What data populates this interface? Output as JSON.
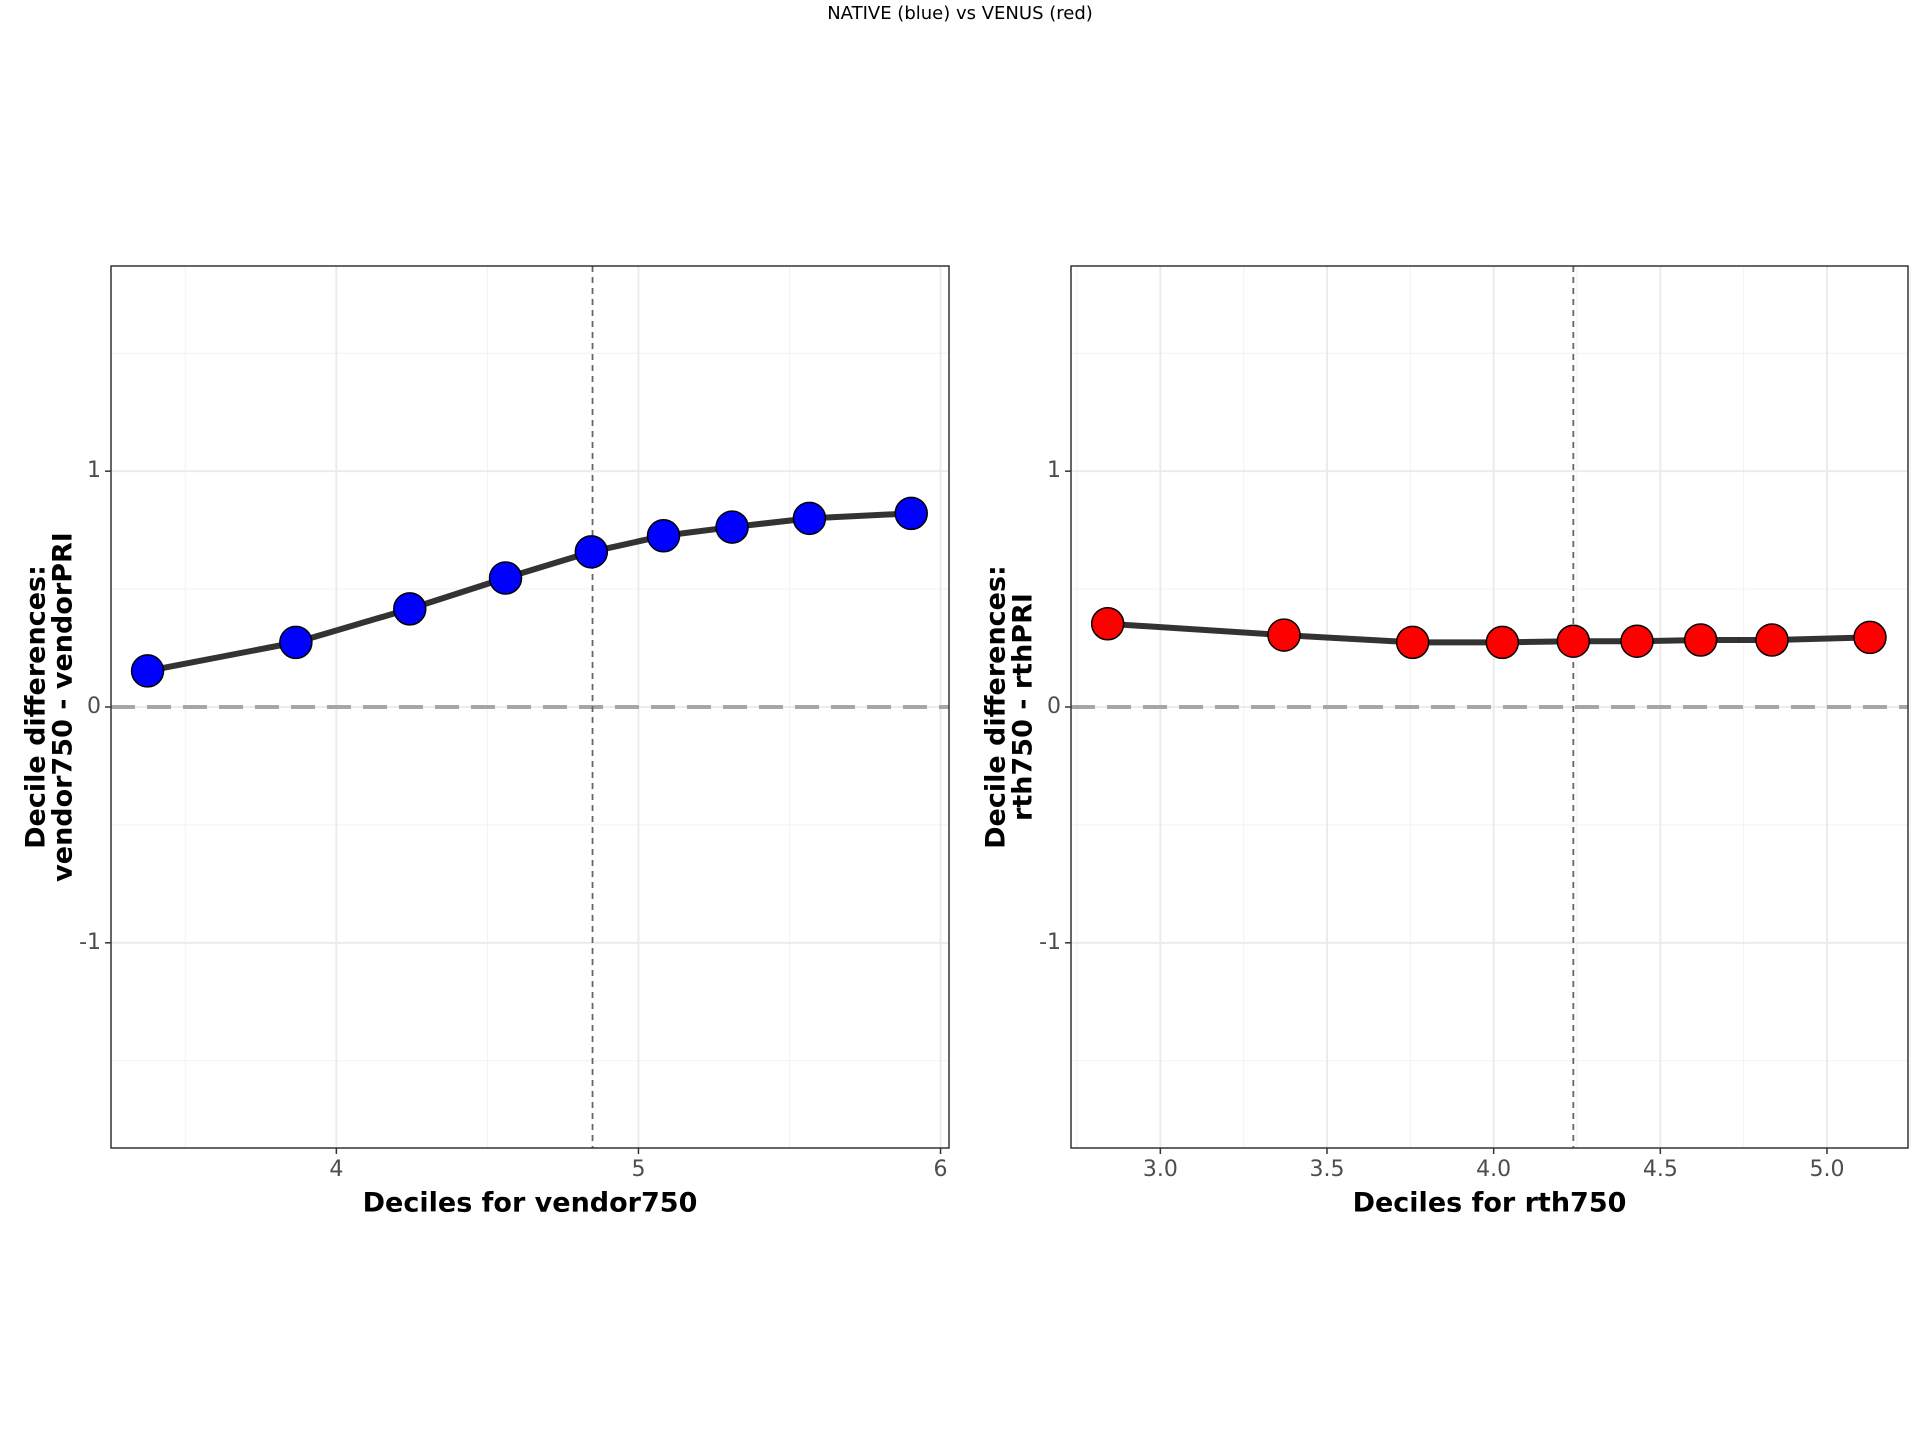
{
  "title": "NATIVE (blue) vs VENUS (red)",
  "chart_data": [
    {
      "type": "line",
      "x_label": "Deciles for vendor750",
      "y_label": [
        "Decile differences:",
        "vendor750 - vendorPRI"
      ],
      "x": [
        3.375,
        3.866,
        4.243,
        4.56,
        4.844,
        5.083,
        5.31,
        5.566,
        5.903
      ],
      "values": [
        0.153,
        0.274,
        0.416,
        0.547,
        0.658,
        0.726,
        0.763,
        0.8,
        0.821
      ],
      "color": "#0000ff",
      "line_color": "#333333",
      "xlim": [
        3.254,
        6.028
      ],
      "ylim": [
        -1.87,
        1.87
      ],
      "xticks": [
        4,
        5,
        6
      ],
      "yticks": [
        -1,
        0,
        1
      ],
      "minor_xticks": [
        3.5,
        4.5,
        5.5
      ],
      "minor_yticks": [
        -1.5,
        -0.5,
        0.5,
        1.5
      ],
      "vline": 4.848,
      "hline": 0,
      "grid": true
    },
    {
      "type": "line",
      "x_label": "Deciles for rth750",
      "y_label": [
        "Decile differences:",
        "rth750 - rthPRI"
      ],
      "x": [
        2.842,
        3.371,
        3.757,
        4.026,
        4.239,
        4.43,
        4.621,
        4.835,
        5.129
      ],
      "values": [
        0.353,
        0.305,
        0.274,
        0.274,
        0.279,
        0.279,
        0.284,
        0.284,
        0.295
      ],
      "color": "#ff0000",
      "line_color": "#333333",
      "xlim": [
        2.732,
        5.243
      ],
      "ylim": [
        -1.87,
        1.87
      ],
      "xticks": [
        {
          "value": 3,
          "label": "3.0"
        },
        3.5,
        {
          "value": 4,
          "label": "4.0"
        },
        4.5,
        {
          "value": 5,
          "label": "5.0"
        }
      ],
      "yticks": [
        -1,
        0,
        1
      ],
      "minor_xticks": [
        2.75,
        3.25,
        3.75,
        4.25,
        4.75,
        5.25
      ],
      "minor_yticks": [
        -1.5,
        -0.5,
        0.5,
        1.5
      ],
      "vline": 4.239,
      "hline": 0,
      "grid": true
    }
  ]
}
